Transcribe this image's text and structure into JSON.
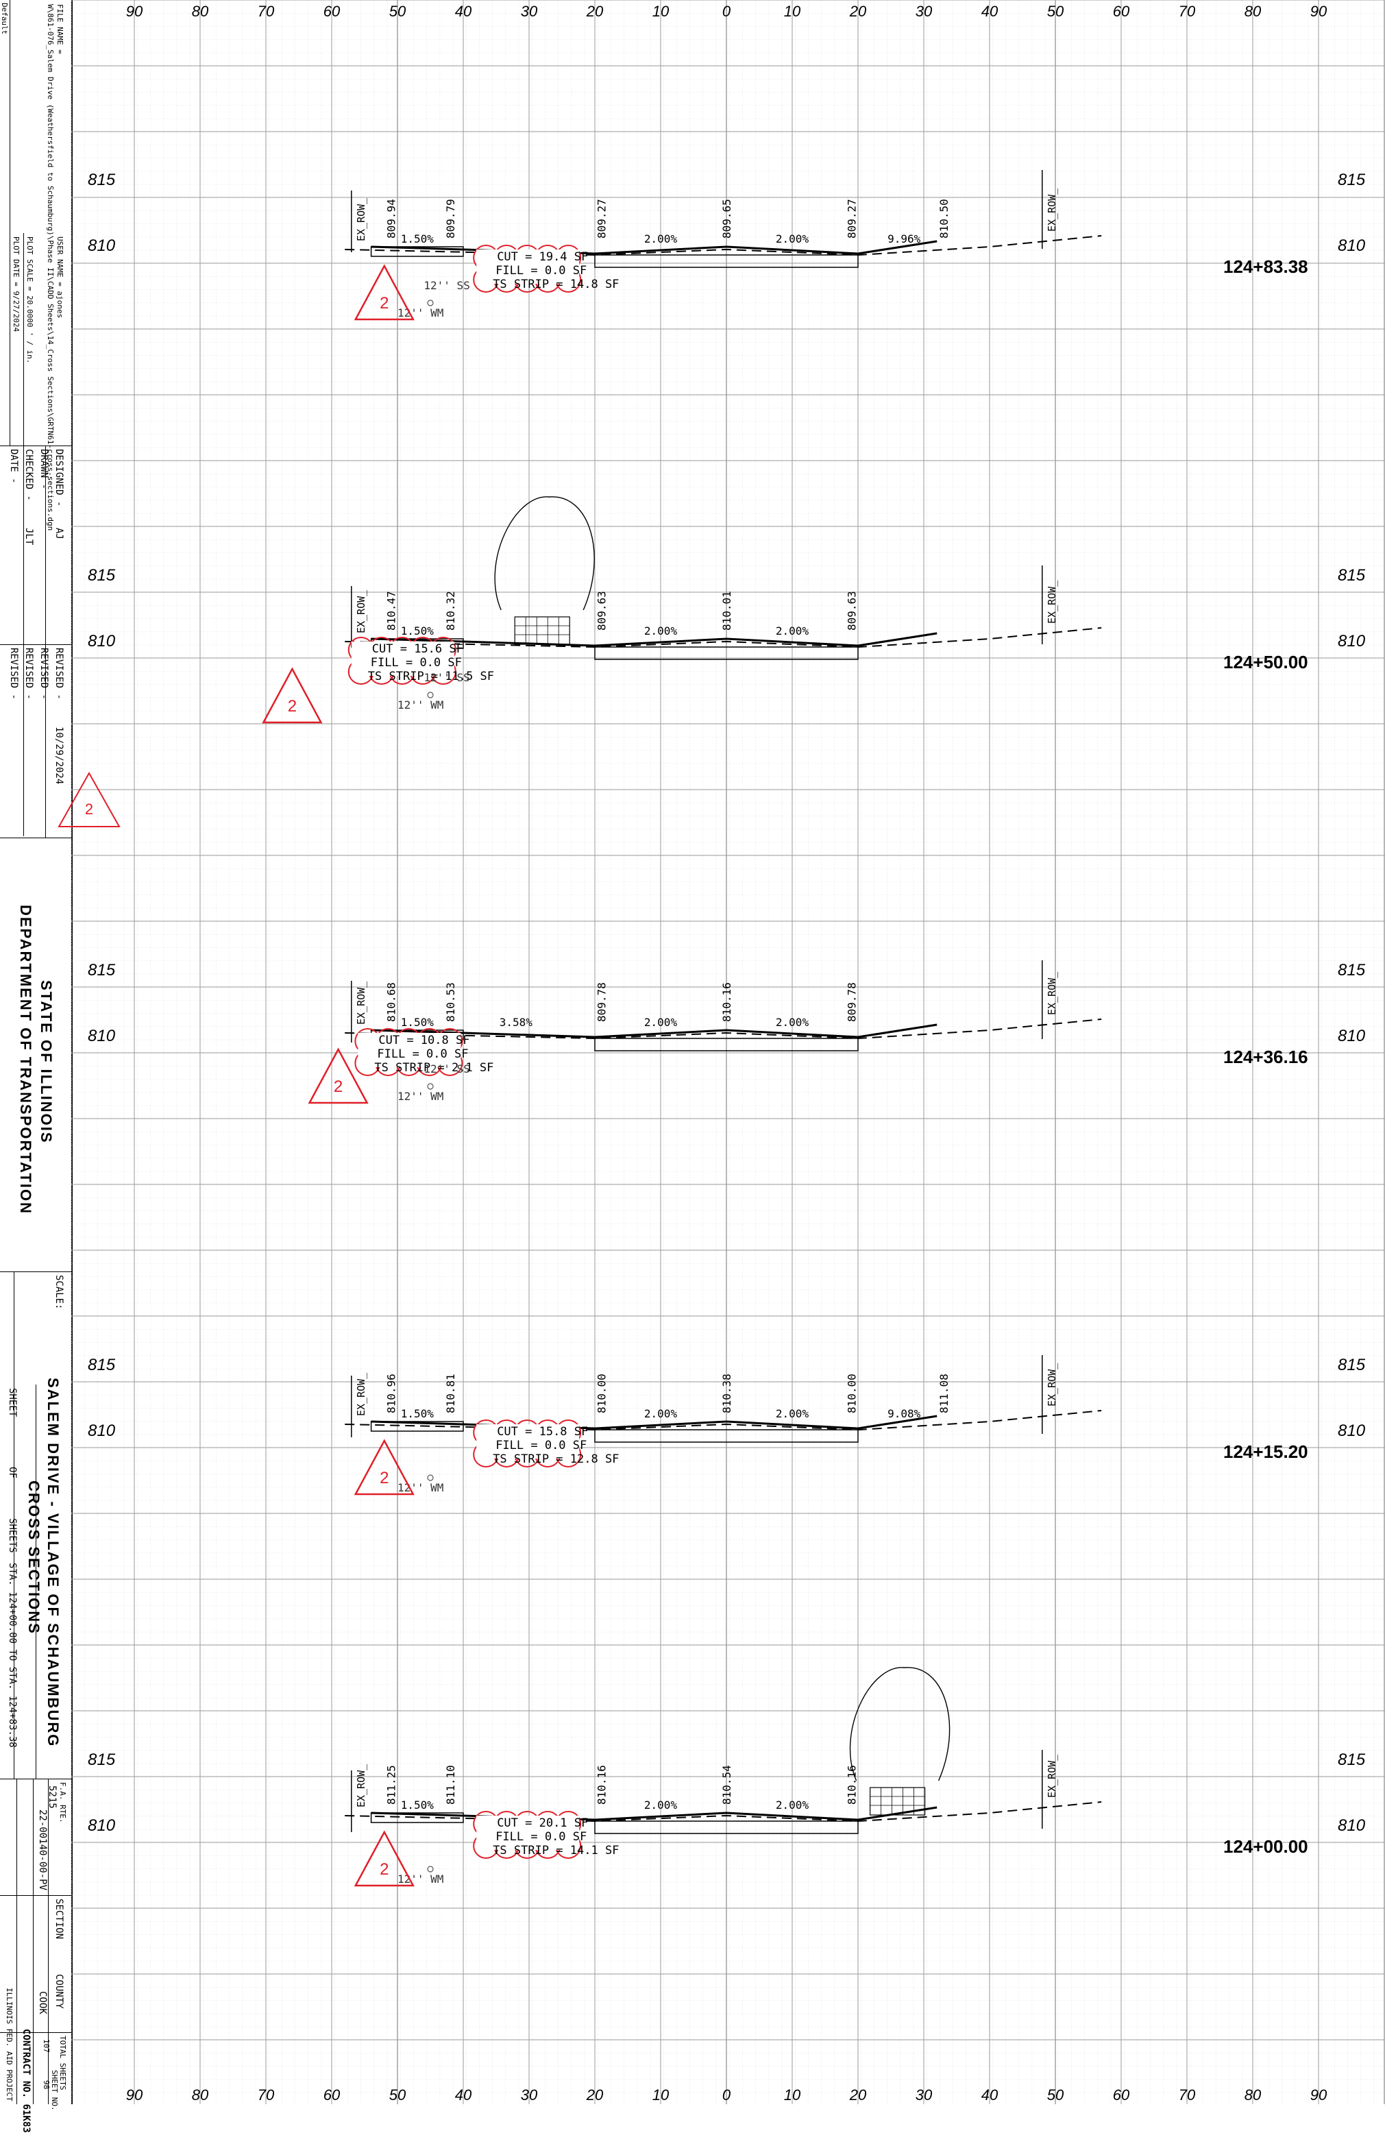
{
  "title_block": {
    "file_name": "FILE NAME =",
    "file_path": "W\\861-076_Salem Drive (Weathersfield to Schaumburg)\\Phase II\\CADD Sheets\\14_Cross Sections\\GRTN61-cross-sections.dgn",
    "default": "Default",
    "user_name": "USER NAME = ajones",
    "plot_scale": "PLOT SCALE = 20.0000 ' / in.",
    "plot_date": "PLOT DATE = 9/27/2024",
    "designed": "DESIGNED -",
    "designed_by": "AJ",
    "drawn": "DRAWN -",
    "checked": "CHECKED -",
    "checked_by": "JLT",
    "date": "DATE -",
    "revised1": "REVISED -",
    "revised1_date": "10/29/2024",
    "revised2": "REVISED -",
    "revised3": "REVISED -",
    "revised4": "REVISED -",
    "agency_line1": "STATE OF ILLINOIS",
    "agency_line2": "DEPARTMENT OF TRANSPORTATION",
    "scale": "SCALE:",
    "sheet": "SHEET",
    "of": "OF",
    "sheets": "SHEETS",
    "sta_range": "STA. 124+00.00    TO STA. 124+83.38",
    "project_line1": "SALEM DRIVE - VILLAGE OF SCHAUMBURG",
    "project_line2": "CROSS SECTIONS",
    "fa_rte_label": "F.A. RTE.",
    "fa_rte": "5215",
    "section_label": "SECTION",
    "section": "22-00140-00-PV",
    "county_label": "COUNTY",
    "county": "COOK",
    "total_sheets_label": "TOTAL SHEETS",
    "total_sheets": "107",
    "sheet_no_label": "SHEET NO.",
    "sheet_no": "98",
    "contract": "CONTRACT NO. 61K83",
    "illinois_fed": "ILLINOIS FED. AID PROJECT",
    "revision_mark": "2"
  },
  "axis_ticks": [
    "90",
    "80",
    "70",
    "60",
    "50",
    "40",
    "30",
    "20",
    "10",
    "0",
    "10",
    "20",
    "30",
    "40",
    "50",
    "60",
    "70",
    "80",
    "90"
  ],
  "elev_labels": [
    "815",
    "810"
  ],
  "sections": [
    {
      "station": "124+83.38",
      "elevs": [
        "809.94",
        "809.79",
        "809.27",
        "809.65",
        "809.27",
        "810.50"
      ],
      "slopes": [
        "1.50%",
        "2.00%",
        "2.00%",
        "9.96%"
      ],
      "row_left": "EX_ROW_",
      "row_right": "EX_ROW_",
      "cut": "CUT = 19.4 SF",
      "fill": "FILL = 0.0 SF",
      "strip": "TS STRIP = 14.8 SF",
      "ss": "12'' SS",
      "wm": "12'' WM",
      "rev": "2"
    },
    {
      "station": "124+50.00",
      "elevs": [
        "810.47",
        "810.32",
        "809.63",
        "810.01",
        "809.63"
      ],
      "slopes": [
        "1.50%",
        "2.00%",
        "2.00%"
      ],
      "row_left": "EX_ROW_",
      "row_right": "EX_ROW_",
      "cut": "CUT = 15.6 SF",
      "fill": "FILL = 0.0 SF",
      "strip": "TS STRIP = 11.5 SF",
      "ss": "12'' SS",
      "wm": "12'' WM",
      "rev": "2"
    },
    {
      "station": "124+36.16",
      "elevs": [
        "810.68",
        "810.53",
        "809.78",
        "810.16",
        "809.78"
      ],
      "slopes": [
        "1.50%",
        "3.58%",
        "2.00%",
        "2.00%"
      ],
      "row_left": "EX_ROW_",
      "row_right": "EX_ROW_",
      "cut": "CUT = 10.8 SF",
      "fill": "FILL = 0.0 SF",
      "strip": "TS STRIP = 2.1 SF",
      "ss": "12'' SS",
      "wm": "12'' WM",
      "rev": "2"
    },
    {
      "station": "124+15.20",
      "elevs": [
        "810.96",
        "810.81",
        "810.00",
        "810.38",
        "810.00",
        "811.08"
      ],
      "slopes": [
        "1.50%",
        "2.00%",
        "2.00%",
        "9.08%"
      ],
      "row_left": "EX_ROW_",
      "row_right": "EX_ROW_",
      "cut": "CUT = 15.8 SF",
      "fill": "FILL = 0.0 SF",
      "strip": "TS STRIP = 12.8 SF",
      "ss": "",
      "wm": "12'' WM",
      "rev": "2"
    },
    {
      "station": "124+00.00",
      "elevs": [
        "811.25",
        "811.10",
        "810.16",
        "810.54",
        "810.16"
      ],
      "slopes": [
        "1.50%",
        "2.00%",
        "2.00%"
      ],
      "row_left": "EX_ROW_",
      "row_right": "EX_ROW_",
      "cut": "CUT = 20.1 SF",
      "fill": "FILL = 0.0 SF",
      "strip": "TS STRIP = 14.1 SF",
      "ss": "",
      "wm": "12'' WM",
      "rev": "2"
    }
  ],
  "colors": {
    "ink": "#000000",
    "grid": "#9a9a9a",
    "minor_grid": "#d0d0d0",
    "revision": "#e0202a"
  }
}
